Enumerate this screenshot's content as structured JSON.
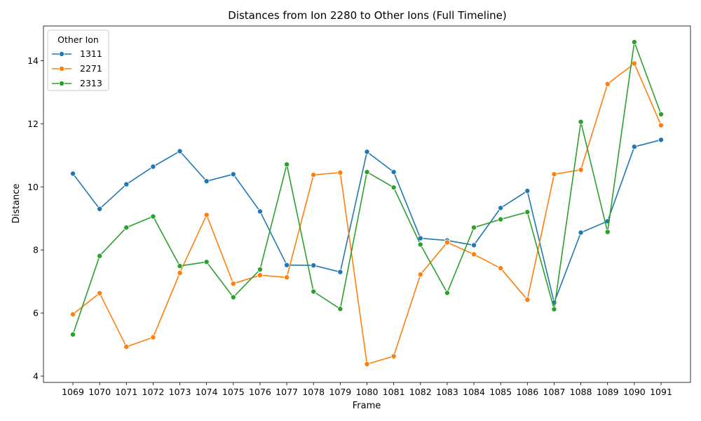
{
  "chart_data": {
    "type": "line",
    "title": "Distances from Ion 2280 to Other Ions (Full Timeline)",
    "xlabel": "Frame",
    "ylabel": "Distance",
    "categories": [
      "1069",
      "1070",
      "1071",
      "1072",
      "1073",
      "1074",
      "1075",
      "1076",
      "1077",
      "1078",
      "1079",
      "1080",
      "1081",
      "1082",
      "1083",
      "1084",
      "1085",
      "1086",
      "1087",
      "1088",
      "1089",
      "1090",
      "1091"
    ],
    "ylim": [
      3.8,
      15.1
    ],
    "yticks": [
      4,
      6,
      8,
      10,
      12,
      14
    ],
    "grid": false,
    "legend": {
      "title": "Other Ion",
      "position": "top-left"
    },
    "series": [
      {
        "name": "1311",
        "color": "#1f77b4",
        "values": [
          10.42,
          9.3,
          10.08,
          10.64,
          11.13,
          10.18,
          10.4,
          9.22,
          7.52,
          7.51,
          7.3,
          11.11,
          10.47,
          8.37,
          8.3,
          8.15,
          9.33,
          9.87,
          6.33,
          8.55,
          8.91,
          11.27,
          11.49
        ]
      },
      {
        "name": "2271",
        "color": "#ff7f0e",
        "values": [
          5.96,
          6.63,
          4.93,
          5.23,
          7.27,
          9.11,
          6.93,
          7.2,
          7.13,
          10.38,
          10.45,
          4.38,
          4.63,
          7.22,
          8.24,
          7.86,
          7.42,
          6.42,
          10.4,
          10.54,
          13.26,
          13.91,
          11.95
        ]
      },
      {
        "name": "2313",
        "color": "#2ca02c",
        "values": [
          5.32,
          7.81,
          8.71,
          9.06,
          7.49,
          7.62,
          6.5,
          7.38,
          10.71,
          6.68,
          6.13,
          10.47,
          9.98,
          8.17,
          6.64,
          8.71,
          8.97,
          9.2,
          6.12,
          12.06,
          8.57,
          14.59,
          12.3
        ]
      }
    ]
  }
}
